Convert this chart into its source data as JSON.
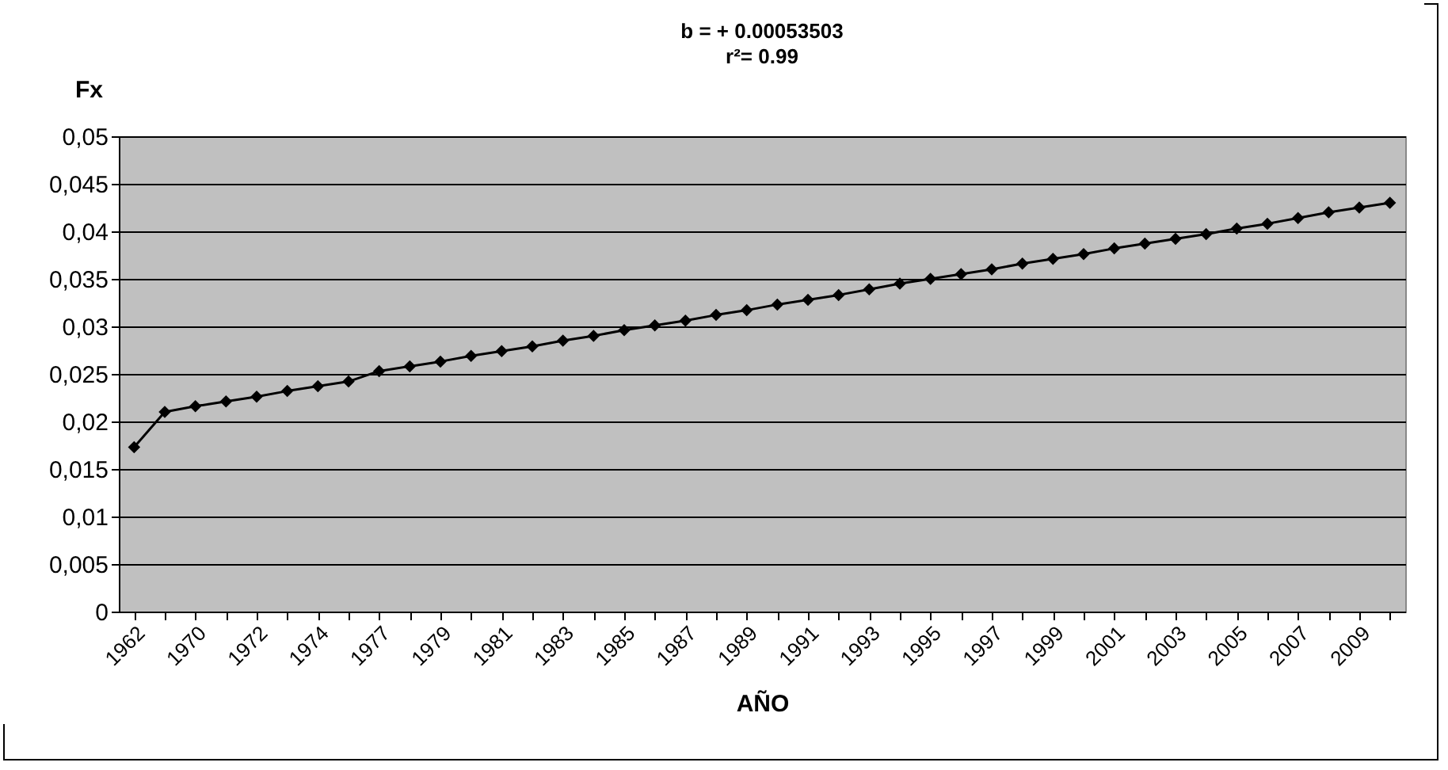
{
  "chart_data": {
    "type": "line",
    "annotations": [
      "b = + 0.00053503",
      "r²= 0.99"
    ],
    "xlabel": "AÑO",
    "ylabel": "Fx",
    "categories": [
      "1962",
      null,
      "1970",
      null,
      "1972",
      null,
      "1974",
      null,
      "1977",
      null,
      "1979",
      null,
      "1981",
      null,
      "1983",
      null,
      "1985",
      null,
      "1987",
      null,
      "1989",
      null,
      "1991",
      null,
      "1993",
      null,
      "1995",
      null,
      "1997",
      null,
      "1999",
      null,
      "2001",
      null,
      "2003",
      null,
      "2005",
      null,
      "2007",
      null,
      "2009",
      null
    ],
    "series": [
      {
        "color": "#000000",
        "values": [
          0.0173,
          0.021,
          0.0216,
          0.0221,
          0.0226,
          0.0232,
          0.0237,
          0.0242,
          0.0253,
          0.0258,
          0.0263,
          0.0269,
          0.0274,
          0.0279,
          0.0285,
          0.029,
          0.0296,
          0.0301,
          0.0306,
          0.0312,
          0.0317,
          0.0323,
          0.0328,
          0.0333,
          0.0339,
          0.0345,
          0.035,
          0.0355,
          0.036,
          0.0366,
          0.0371,
          0.0376,
          0.0382,
          0.0387,
          0.0392,
          0.0397,
          0.0403,
          0.0408,
          0.0414,
          0.042,
          0.0425,
          0.043
        ]
      }
    ],
    "ylim": [
      0,
      0.05
    ],
    "yticks": [
      0,
      {
        "value": 0.005,
        "label": "0,005"
      },
      {
        "value": 0.01,
        "label": "0,01"
      },
      {
        "value": 0.015,
        "label": "0,015"
      },
      {
        "value": 0.02,
        "label": "0,02"
      },
      {
        "value": 0.025,
        "label": "0,025"
      },
      {
        "value": 0.03,
        "label": "0,03"
      },
      {
        "value": 0.035,
        "label": "0,035"
      },
      {
        "value": 0.04,
        "label": "0,04"
      },
      {
        "value": 0.045,
        "label": "0,045"
      },
      {
        "value": 0.05,
        "label": "0,05"
      }
    ],
    "grid": "y",
    "marker": "diamond",
    "line_style": "solid"
  }
}
